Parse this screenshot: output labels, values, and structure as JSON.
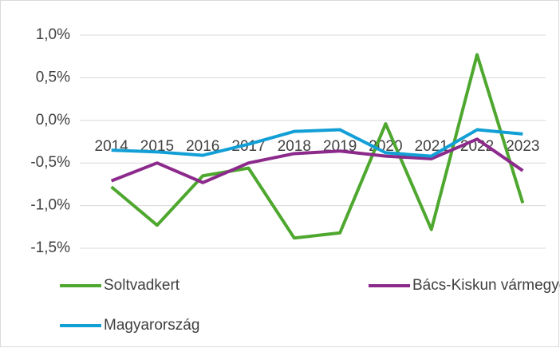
{
  "chart_data": {
    "type": "line",
    "categories": [
      "2014",
      "2015",
      "2016",
      "2017",
      "2018",
      "2019",
      "2020",
      "2021",
      "2022",
      "2023"
    ],
    "series": [
      {
        "name": "Soltvadkert",
        "color": "#4ea72e",
        "values": [
          -0.78,
          -1.23,
          -0.65,
          -0.56,
          -1.38,
          -1.32,
          -0.04,
          -1.28,
          0.77,
          -0.97
        ]
      },
      {
        "name": "Bács-Kiskun vármegye",
        "color": "#8c2a8c",
        "values": [
          -0.71,
          -0.5,
          -0.73,
          -0.5,
          -0.39,
          -0.36,
          -0.42,
          -0.45,
          -0.22,
          -0.59
        ]
      },
      {
        "name": "Magyarország",
        "color": "#129fd6",
        "values": [
          -0.35,
          -0.37,
          -0.41,
          -0.28,
          -0.13,
          -0.11,
          -0.38,
          -0.42,
          -0.11,
          -0.16
        ]
      }
    ],
    "ylim": [
      -1.5,
      1.0
    ],
    "yticks": [
      {
        "value": -1.5,
        "label": "-1,5%"
      },
      {
        "value": -1.0,
        "label": "-1,0%"
      },
      {
        "value": -0.5,
        "label": "-0,5%"
      },
      {
        "value": 0,
        "label": "0,0%"
      },
      {
        "value": 0.5,
        "label": "0,5%"
      },
      {
        "value": 1.0,
        "label": "1,0%"
      }
    ],
    "grid": true
  }
}
